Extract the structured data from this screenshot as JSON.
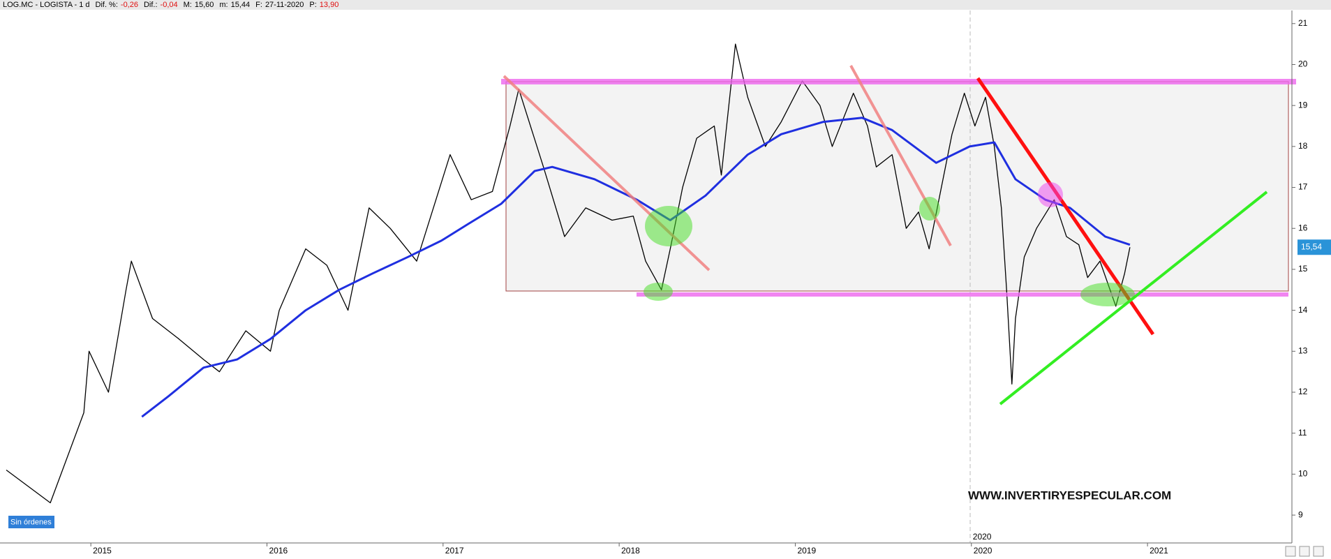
{
  "header": {
    "symbol": "LOG.MC - LOGISTA - 1 d",
    "fields": [
      {
        "label": "Dif. %:",
        "value": "-0,26",
        "color": "#e01010"
      },
      {
        "label": "Dif.:",
        "value": "-0,04",
        "color": "#e01010"
      },
      {
        "label": "M:",
        "value": "15,60",
        "color": "#000000"
      },
      {
        "label": "m:",
        "value": "15,44",
        "color": "#000000"
      },
      {
        "label": "F:",
        "value": "27-11-2020",
        "color": "#000000"
      },
      {
        "label": "P:",
        "value": "13,90",
        "color": "#e01010"
      }
    ]
  },
  "status": "Sin órdenes",
  "watermark": "WWW.INVERTIRYESPECULAR.COM",
  "chart_data": {
    "type": "line",
    "xlim": [
      2014.5,
      2021.82
    ],
    "xticks": [
      2015,
      2016,
      2017,
      2018,
      2019,
      2020,
      2021
    ],
    "ylim": [
      8.32,
      21.32
    ],
    "yticks": [
      9,
      10,
      11,
      12,
      13,
      14,
      15,
      16,
      17,
      18,
      19,
      20,
      21
    ],
    "marker_line": {
      "value": 2020,
      "label": "2020"
    },
    "current_price": {
      "value": 15.54,
      "label": "15,54"
    },
    "series": [
      {
        "name": "LOG.MC",
        "color": "#000000",
        "x": [
          2014.52,
          2014.77,
          2014.96,
          2014.99,
          2015.1,
          2015.2,
          2015.23,
          2015.35,
          2015.5,
          2015.64,
          2015.73,
          2015.88,
          2016.02,
          2016.07,
          2016.22,
          2016.34,
          2016.46,
          2016.58,
          2016.7,
          2016.85,
          2017.04,
          2017.16,
          2017.28,
          2017.38,
          2017.43,
          2017.57,
          2017.69,
          2017.81,
          2017.96,
          2018.08,
          2018.15,
          2018.24,
          2018.29,
          2018.36,
          2018.44,
          2018.54,
          2018.58,
          2018.66,
          2018.73,
          2018.83,
          2018.92,
          2019.04,
          2019.14,
          2019.21,
          2019.33,
          2019.41,
          2019.46,
          2019.55,
          2019.63,
          2019.7,
          2019.76,
          2019.82,
          2019.89,
          2019.96,
          2020.02,
          2020.08,
          2020.13,
          2020.17,
          2020.2,
          2020.23,
          2020.25,
          2020.3,
          2020.37,
          2020.47,
          2020.54,
          2020.61,
          2020.66,
          2020.73,
          2020.82,
          2020.87,
          2020.9
        ],
        "values": [
          10.1,
          9.3,
          11.5,
          13,
          12,
          14.5,
          15.2,
          13.8,
          13.3,
          12.8,
          12.5,
          13.5,
          13,
          14,
          15.5,
          15.1,
          14,
          16.5,
          16,
          15.2,
          17.8,
          16.7,
          16.9,
          18.5,
          19.4,
          17.5,
          15.8,
          16.5,
          16.2,
          16.3,
          15.2,
          14.5,
          15.5,
          17,
          18.2,
          18.5,
          17.3,
          20.5,
          19.2,
          18,
          18.6,
          19.6,
          19,
          18,
          19.3,
          18.5,
          17.5,
          17.8,
          16,
          16.4,
          15.5,
          16.8,
          18.3,
          19.3,
          18.5,
          19.2,
          18,
          16.5,
          14.5,
          12.2,
          13.8,
          15.3,
          16,
          16.7,
          15.8,
          15.6,
          14.8,
          15.2,
          14.1,
          14.9,
          15.54
        ]
      },
      {
        "name": "MA",
        "color": "#1f2fe0",
        "x": [
          2015.29,
          2015.44,
          2015.64,
          2015.83,
          2016.02,
          2016.22,
          2016.41,
          2016.6,
          2016.8,
          2016.99,
          2017.14,
          2017.33,
          2017.52,
          2017.62,
          2017.86,
          2018.1,
          2018.29,
          2018.49,
          2018.73,
          2018.92,
          2019.16,
          2019.38,
          2019.55,
          2019.8,
          2019.99,
          2020.13,
          2020.25,
          2020.42,
          2020.56,
          2020.76,
          2020.9
        ],
        "values": [
          11.4,
          11.9,
          12.6,
          12.8,
          13.3,
          14,
          14.5,
          14.9,
          15.3,
          15.7,
          16.1,
          16.6,
          17.4,
          17.5,
          17.2,
          16.7,
          16.2,
          16.8,
          17.8,
          18.3,
          18.6,
          18.7,
          18.4,
          17.6,
          18,
          18.1,
          17.2,
          16.7,
          16.5,
          15.8,
          15.6
        ]
      }
    ]
  }
}
